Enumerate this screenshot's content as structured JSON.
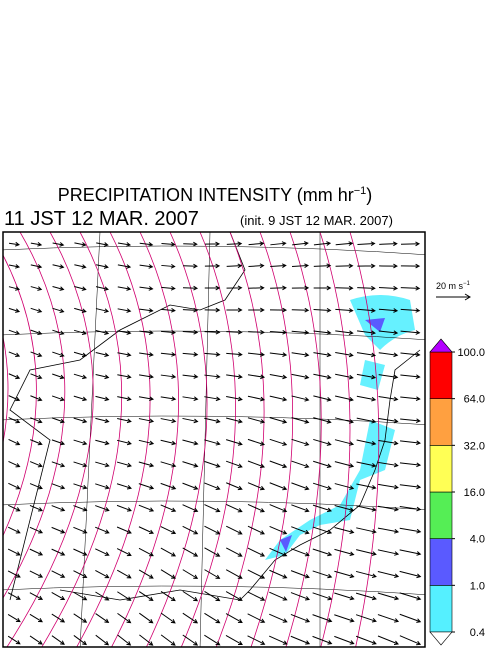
{
  "title": {
    "main": "PRECIPITATION INTENSITY (mm hr",
    "sup": "−1",
    "close": ")"
  },
  "subtitle": {
    "valid_time": "11 JST 12 MAR. 2007",
    "init_time": "(init. 9 JST 12 MAR. 2007)"
  },
  "reference_vector": {
    "label": "20 m s",
    "sup": "−1"
  },
  "colorbar": {
    "ticks": [
      {
        "value": 0.4,
        "label": "0.4"
      },
      {
        "value": 1,
        "label": "1.0"
      },
      {
        "value": 4,
        "label": "4.0"
      },
      {
        "value": 16,
        "label": "16.0"
      },
      {
        "value": 32,
        "label": "32.0"
      },
      {
        "value": 64,
        "label": "64.0"
      },
      {
        "value": 100,
        "label": "100.0"
      }
    ],
    "colors": [
      "#55f0ff",
      "#5a5aff",
      "#55ee55",
      "#ffff55",
      "#ffa040",
      "#ff0000"
    ],
    "over_color": "#b400ff",
    "under_color": "#ffffff"
  }
}
